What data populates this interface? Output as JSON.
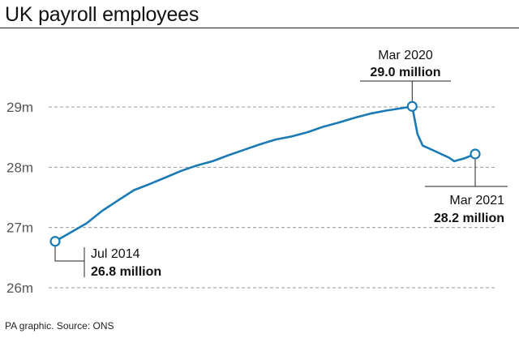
{
  "title": "UK payroll employees",
  "source": "PA graphic. Source: ONS",
  "colors": {
    "line": "#1a7ab5",
    "grid": "#9a9a9a",
    "text": "#111111"
  },
  "chart_data": {
    "type": "line",
    "title": "UK payroll employees",
    "xlabel": "",
    "ylabel": "",
    "ylim": [
      26,
      29.8
    ],
    "xlim": [
      "2014-07",
      "2021-03"
    ],
    "yticks": [
      26,
      27,
      28,
      29
    ],
    "ytick_labels": [
      "26m",
      "27m",
      "28m",
      "29m"
    ],
    "grid": true,
    "series": [
      {
        "values_unit": "millions",
        "x": [
          "2014-07",
          "2014-10",
          "2015-01",
          "2015-04",
          "2015-07",
          "2015-10",
          "2016-01",
          "2016-04",
          "2016-07",
          "2016-10",
          "2017-01",
          "2017-04",
          "2017-07",
          "2017-10",
          "2018-01",
          "2018-04",
          "2018-07",
          "2018-10",
          "2019-01",
          "2019-04",
          "2019-07",
          "2019-10",
          "2020-01",
          "2020-03",
          "2020-04",
          "2020-05",
          "2020-07",
          "2020-10",
          "2020-11",
          "2021-01",
          "2021-03"
        ],
        "y": [
          26.77,
          26.92,
          27.07,
          27.28,
          27.45,
          27.62,
          27.72,
          27.83,
          27.94,
          28.03,
          28.1,
          28.2,
          28.29,
          28.38,
          28.46,
          28.51,
          28.58,
          28.67,
          28.74,
          28.82,
          28.89,
          28.94,
          28.98,
          29.01,
          28.55,
          28.36,
          28.28,
          28.16,
          28.1,
          28.15,
          28.22
        ]
      }
    ],
    "annotations": [
      {
        "x": "2014-07",
        "y": 26.77,
        "date": "Jul 2014",
        "value": "26.8 million"
      },
      {
        "x": "2020-03",
        "y": 29.01,
        "date": "Mar 2020",
        "value": "29.0 million"
      },
      {
        "x": "2021-03",
        "y": 28.22,
        "date": "Mar 2021",
        "value": "28.2 million"
      }
    ]
  }
}
